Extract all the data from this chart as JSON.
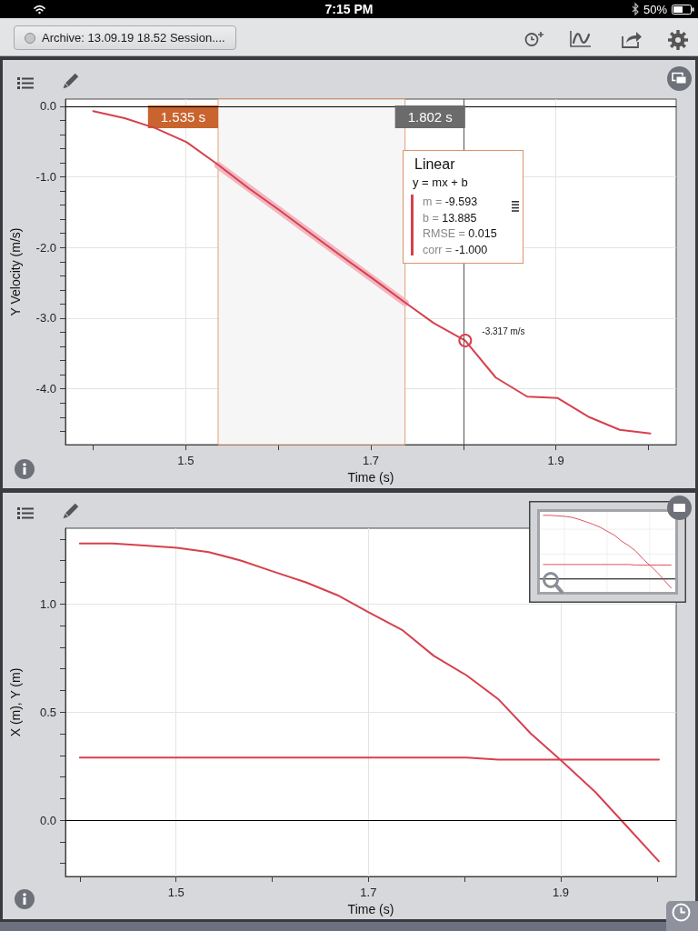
{
  "chart_data": [
    {
      "type": "line",
      "title": "Archive: 13.09.19 18.52 Session....",
      "xlabel": "Time (s)",
      "ylabel": "Y Velocity (m/s)",
      "annotations": [
        "7:15 PM",
        "50%",
        "Linear",
        "y = mx + b",
        "m = -9.593",
        "b = 13.885",
        "RMSE = 0.015",
        "corr = -1.000",
        {
          "text": "-3.317 m/s",
          "x": 1.802,
          "y": -3.317
        }
      ],
      "x": [
        1.4,
        1.434,
        1.467,
        1.501,
        1.534,
        1.568,
        1.601,
        1.635,
        1.668,
        1.701,
        1.735,
        1.768,
        1.802,
        1.835,
        1.869,
        1.902,
        1.936,
        1.969,
        2.002
      ],
      "series": [
        {
          "color": "#d7404d",
          "values": [
            -0.07,
            -0.17,
            -0.31,
            -0.51,
            -0.82,
            -1.16,
            -1.47,
            -1.8,
            -2.12,
            -2.43,
            -2.76,
            -3.07,
            -3.317,
            -3.84,
            -4.11,
            -4.13,
            -4.4,
            -4.58,
            -4.63
          ]
        },
        {
          "color": "#f3b6c1",
          "x": [
            1.535,
            1.737
          ],
          "values": [
            -0.84,
            -2.78
          ]
        }
      ],
      "xlim": [
        1.37,
        2.03
      ],
      "xticks": [
        {
          "value": 1.4,
          "label": null
        },
        1.5,
        {
          "value": 1.6,
          "label": null
        },
        1.7,
        {
          "value": 1.8,
          "label": null
        },
        1.9,
        {
          "value": 2,
          "label": null
        }
      ],
      "ylim": [
        -4.79,
        0.1
      ],
      "yticks": [
        {
          "value": 0,
          "label": "0.0"
        },
        {
          "value": -0.2,
          "label": null
        },
        {
          "value": -0.4,
          "label": null
        },
        {
          "value": -0.6,
          "label": null
        },
        {
          "value": -0.8,
          "label": null
        },
        {
          "value": -1,
          "label": "-1.0"
        },
        {
          "value": -1.2,
          "label": null
        },
        {
          "value": -1.4,
          "label": null
        },
        {
          "value": -1.6,
          "label": null
        },
        {
          "value": -1.8,
          "label": null
        },
        {
          "value": -2,
          "label": "-2.0"
        },
        {
          "value": -2.2,
          "label": null
        },
        {
          "value": -2.4,
          "label": null
        },
        {
          "value": -2.6,
          "label": null
        },
        {
          "value": -2.8,
          "label": null
        },
        {
          "value": -3,
          "label": "-3.0"
        },
        {
          "value": -3.2,
          "label": null
        },
        {
          "value": -3.4,
          "label": null
        },
        {
          "value": -3.6,
          "label": null
        },
        {
          "value": -3.8,
          "label": null
        },
        {
          "value": -4,
          "label": "-4.0"
        },
        {
          "value": -4.2,
          "label": null
        },
        {
          "value": -4.4,
          "label": null
        },
        {
          "value": -4.6,
          "label": null
        }
      ],
      "grid": true,
      "ref_lines": [
        {
          "axis": "y",
          "value": 0,
          "color": "#000000"
        },
        {
          "axis": "x",
          "value": 1.802,
          "label": "1.802 s",
          "color": "#555555"
        }
      ],
      "bands": [
        {
          "axis": "x",
          "from": 1.535,
          "to": 1.737,
          "label": "1.535 s",
          "color": "#f6f6f6"
        }
      ]
    },
    {
      "type": "line",
      "xlabel": "Time (s)",
      "ylabel": "X (m), Y (m)",
      "x": [
        1.4,
        1.434,
        1.467,
        1.501,
        1.534,
        1.568,
        1.601,
        1.635,
        1.668,
        1.701,
        1.735,
        1.768,
        1.802,
        1.835,
        1.869,
        1.902,
        1.936,
        1.969,
        2.002
      ],
      "series": [
        {
          "color": "#d7404d",
          "values": [
            1.28,
            1.28,
            1.27,
            1.26,
            1.24,
            1.2,
            1.15,
            1.1,
            1.04,
            0.96,
            0.88,
            0.76,
            0.67,
            0.56,
            0.4,
            0.27,
            0.13,
            -0.03,
            -0.19
          ]
        },
        {
          "color": "#d7404d",
          "values": [
            0.29,
            0.29,
            0.29,
            0.29,
            0.29,
            0.29,
            0.29,
            0.29,
            0.29,
            0.29,
            0.29,
            0.29,
            0.29,
            0.28,
            0.28,
            0.28,
            0.28,
            0.28,
            0.28
          ]
        }
      ],
      "xlim": [
        1.385,
        2.02
      ],
      "xticks": [
        {
          "value": 1.4,
          "label": null
        },
        1.5,
        {
          "value": 1.6,
          "label": null
        },
        1.7,
        {
          "value": 1.8,
          "label": null
        },
        1.9,
        {
          "value": 2,
          "label": null
        }
      ],
      "ylim": [
        -0.26,
        1.35
      ],
      "yticks": [
        {
          "value": -0.2,
          "label": null
        },
        {
          "value": -0.1,
          "label": null
        },
        {
          "value": 0,
          "label": "0.0"
        },
        {
          "value": 0.1,
          "label": null
        },
        {
          "value": 0.2,
          "label": null
        },
        {
          "value": 0.3,
          "label": null
        },
        {
          "value": 0.4,
          "label": null
        },
        {
          "value": 0.5,
          "label": "0.5"
        },
        {
          "value": 0.6,
          "label": null
        },
        {
          "value": 0.7,
          "label": null
        },
        {
          "value": 0.8,
          "label": null
        },
        {
          "value": 0.9,
          "label": null
        },
        {
          "value": 1,
          "label": "1.0"
        },
        {
          "value": 1.1,
          "label": null
        },
        {
          "value": 1.2,
          "label": null
        },
        {
          "value": 1.3,
          "label": null
        }
      ],
      "grid": true,
      "ref_lines": [
        {
          "axis": "y",
          "value": 0,
          "color": "#000000"
        }
      ]
    }
  ]
}
